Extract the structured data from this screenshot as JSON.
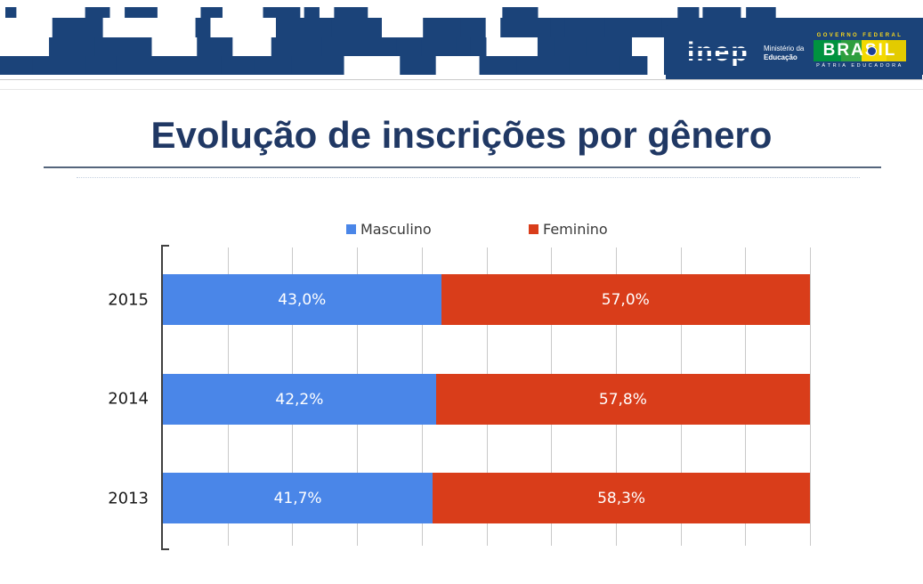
{
  "banner": {
    "inep_logo_text": "inep",
    "ministry": {
      "line1": "Ministério da",
      "line2": "Educação"
    },
    "brasil_logo": {
      "top": "GOVERNO FEDERAL",
      "name": "BRASIL",
      "bottom": "PÁTRIA EDUCADORA"
    },
    "colors": {
      "banner_blue": "#1b4379"
    }
  },
  "title": "Evolução de inscrições por gênero",
  "chart_data": {
    "type": "bar",
    "variant": "horizontal_stacked",
    "title": "Evolução de inscrições por gênero",
    "categories": [
      "2015",
      "2014",
      "2013"
    ],
    "series": [
      {
        "name": "Masculino",
        "color": "#4a86e8",
        "values": [
          43.0,
          42.2,
          41.7
        ],
        "display_labels": [
          "43,0%",
          "42,2%",
          "41,7%"
        ]
      },
      {
        "name": "Feminino",
        "color": "#d93d1a",
        "values": [
          57.0,
          57.8,
          58.3
        ],
        "display_labels": [
          "57,0%",
          "57,8%",
          "58,3%"
        ]
      }
    ],
    "value_axis": {
      "min": 0,
      "max": 100,
      "gridline_step": 10,
      "unit": "%"
    },
    "legend_position": "top",
    "grid": true,
    "colors": {
      "gridline": "#c9c9c9",
      "axis": "#404040",
      "bar_label_text": "#ffffff"
    }
  }
}
